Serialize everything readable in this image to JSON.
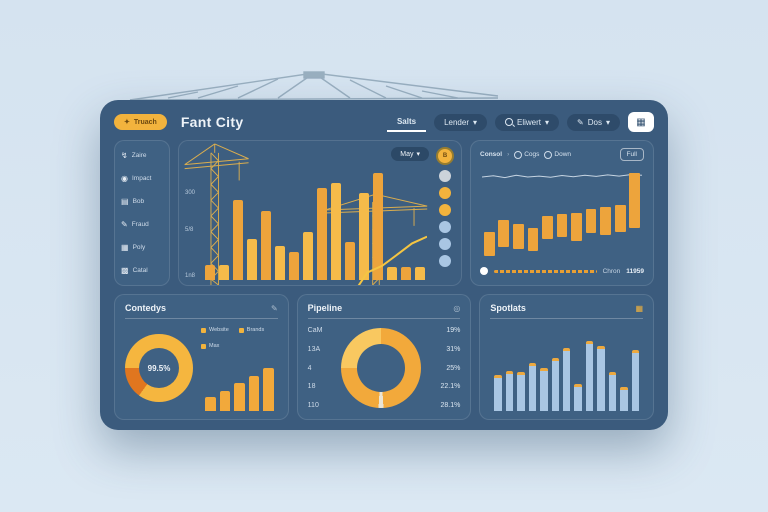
{
  "app": {
    "badge_label": "Truach",
    "badge_glyph": "✦",
    "title": "Fant City",
    "nav": [
      {
        "label": "Salts"
      },
      {
        "label": "Lender",
        "caret": "▾"
      },
      {
        "label": "Eliwert",
        "caret": "▾"
      },
      {
        "label": "Dos",
        "glyph": "✎",
        "caret": "▾"
      }
    ],
    "header_button_glyph": "▦"
  },
  "sidebar": {
    "items": [
      {
        "glyph": "↯",
        "label": "Zaire"
      },
      {
        "glyph": "◉",
        "label": "Impact"
      },
      {
        "glyph": "▤",
        "label": "Bob"
      },
      {
        "glyph": "✎",
        "label": "Fraud"
      },
      {
        "glyph": "▦",
        "label": "Poly"
      },
      {
        "glyph": "▩",
        "label": "Catal"
      }
    ]
  },
  "main_chart": {
    "period_label": "May",
    "period_caret": "▾",
    "y_labels": [
      "300",
      "5/8",
      "1n8"
    ],
    "chart_data": {
      "type": "bar+line",
      "bar_values": [
        13,
        13,
        70,
        36,
        60,
        30,
        24,
        42,
        80,
        84,
        33,
        76,
        93,
        11,
        11,
        11
      ],
      "line_points": [
        7,
        10,
        16,
        28,
        33,
        30,
        29,
        36,
        37,
        40,
        42,
        52,
        55,
        60,
        65,
        68
      ],
      "ylim": [
        0,
        100
      ],
      "bar_color": "#eda43c",
      "line_color": "#f5c542"
    },
    "dots": [
      {
        "color": "#f2b33d",
        "glyph": "B",
        "ring": true
      },
      {
        "color": "#ccd3da",
        "glyph": ""
      },
      {
        "color": "#f2b33d",
        "glyph": ""
      },
      {
        "color": "#f2b33d",
        "glyph": ""
      },
      {
        "color": "#a9c6e3",
        "glyph": ""
      },
      {
        "color": "#a9c6e3",
        "glyph": ""
      },
      {
        "color": "#a9c6e3",
        "glyph": ""
      }
    ]
  },
  "right_panel": {
    "breadcrumb": "Consol",
    "separator": "›",
    "tabs": [
      {
        "label": "Cogs"
      },
      {
        "label": "Down"
      }
    ],
    "button_label": "Full",
    "chart_data": {
      "type": "waterfall",
      "bar_ranges": [
        [
          4,
          30
        ],
        [
          14,
          42
        ],
        [
          12,
          38
        ],
        [
          10,
          34
        ],
        [
          22,
          46
        ],
        [
          24,
          48
        ],
        [
          20,
          50
        ],
        [
          28,
          54
        ],
        [
          26,
          56
        ],
        [
          30,
          58
        ],
        [
          34,
          92
        ]
      ],
      "sparkline": [
        60,
        64,
        58,
        66,
        60,
        63,
        59,
        65,
        61,
        66,
        62,
        67,
        63,
        68,
        66
      ],
      "bar_color": "#eda43c",
      "sparkline_color": "#c6d4e2"
    },
    "footer": {
      "label": "Chron",
      "value": "11959"
    }
  },
  "cards": [
    {
      "title": "Contedys",
      "icon_glyph": "✎",
      "donut": {
        "center_label": "99.5%",
        "segments": [
          {
            "color": "#f5b63f",
            "pct": 85
          },
          {
            "color": "#e0761f",
            "pct": 15
          }
        ]
      },
      "legend": [
        {
          "label": "Website",
          "color": "#f2b33d"
        },
        {
          "label": "Brands",
          "color": "#f2b33d"
        },
        {
          "label": "Max",
          "color": "#f2b33d"
        }
      ],
      "chart_data": {
        "type": "bar",
        "values": [
          24,
          34,
          46,
          58,
          72
        ],
        "bar_color": "#f2a93b"
      }
    },
    {
      "title": "Pipeline",
      "icon_glyph": "◎",
      "rows": [
        {
          "label": "CaM",
          "value": "19%"
        },
        {
          "label": "13A",
          "value": "31%"
        },
        {
          "label": "4",
          "value": "25%"
        },
        {
          "label": "18",
          "value": "22.1%"
        },
        {
          "label": "110",
          "value": "28.1%"
        }
      ],
      "donut": {
        "segments": [
          {
            "color": "#f9c860",
            "pct": 25
          },
          {
            "color": "#f2a93b",
            "pct": 49
          },
          {
            "color": "#ece5d4",
            "pct": 2
          },
          {
            "color": "#f2a93b",
            "pct": 24
          }
        ]
      }
    },
    {
      "title": "Spotlats",
      "icon_glyph": "▦",
      "chart_data": {
        "type": "bar",
        "values": [
          38,
          43,
          42,
          52,
          46,
          58,
          70,
          28,
          78,
          72,
          42,
          24,
          68
        ],
        "bar_color": "#a9c6e3",
        "cap_color": "#eda93f"
      }
    }
  ]
}
